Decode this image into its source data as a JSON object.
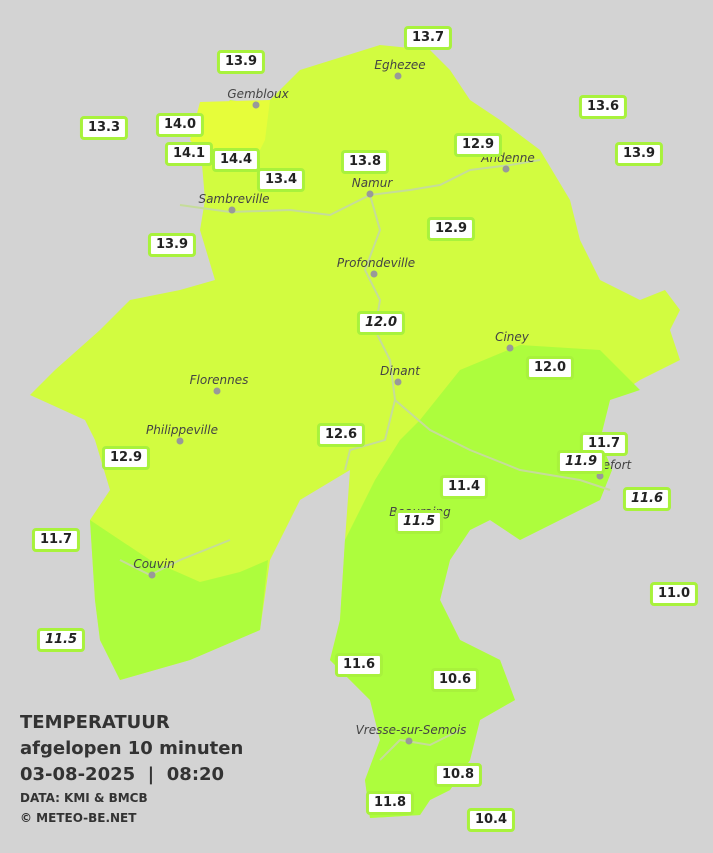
{
  "cities": [
    "Eghezee",
    "Gembloux",
    "Andenne",
    "Namur",
    "Sambreville",
    "Profondeville",
    "Ciney",
    "Dinant",
    "Florennes",
    "Philippeville",
    "Rochefort",
    "Beauraing",
    "Couvin",
    "Vresse-sur-Semois"
  ],
  "temperatures": [
    "13.7",
    "13.9",
    "13.3",
    "14.0",
    "13.6",
    "14.1",
    "14.4",
    "12.9",
    "13.9",
    "13.8",
    "13.4",
    "13.9",
    "12.9",
    "12.0",
    "12.0",
    "12.6",
    "11.7",
    "11.9",
    "12.9",
    "11.4",
    "11.6",
    "11.5",
    "11.7",
    "11.0",
    "11.5",
    "11.6",
    "10.6",
    "10.8",
    "11.8",
    "10.4"
  ],
  "legend": {
    "title": "TEMPERATUUR",
    "subtitle": "afgelopen 10 minuten",
    "timestamp": "03-08-2025  |  08:20",
    "source": "DATA: KMI & BMCB",
    "copyright": "© METEO-BE.NET"
  }
}
